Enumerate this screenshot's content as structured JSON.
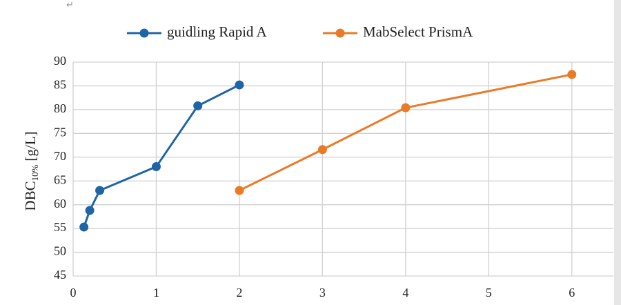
{
  "chart_data": {
    "type": "line",
    "annotation": "↵",
    "ylabel": {
      "main": "DBC",
      "sub": "10%",
      "unit": "[g/L]"
    },
    "series": [
      {
        "name": "guidling Rapid A",
        "color": "#1f64a6",
        "x": [
          0.13,
          0.2,
          0.32,
          1,
          1.5,
          2
        ],
        "values": [
          55.3,
          58.8,
          63,
          68,
          80.8,
          85.2
        ]
      },
      {
        "name": "MabSelect PrismA",
        "color": "#ea7a26",
        "x": [
          2,
          3,
          4,
          6
        ],
        "values": [
          63,
          71.6,
          80.4,
          87.4
        ]
      }
    ],
    "xlim": [
      0,
      6.5
    ],
    "xticks": [
      0,
      1,
      2,
      3,
      4,
      5,
      6
    ],
    "ylim": [
      45,
      90
    ],
    "yticks": [
      45,
      50,
      55,
      60,
      65,
      70,
      75,
      80,
      85,
      90
    ],
    "grid": true,
    "legend": "top"
  }
}
